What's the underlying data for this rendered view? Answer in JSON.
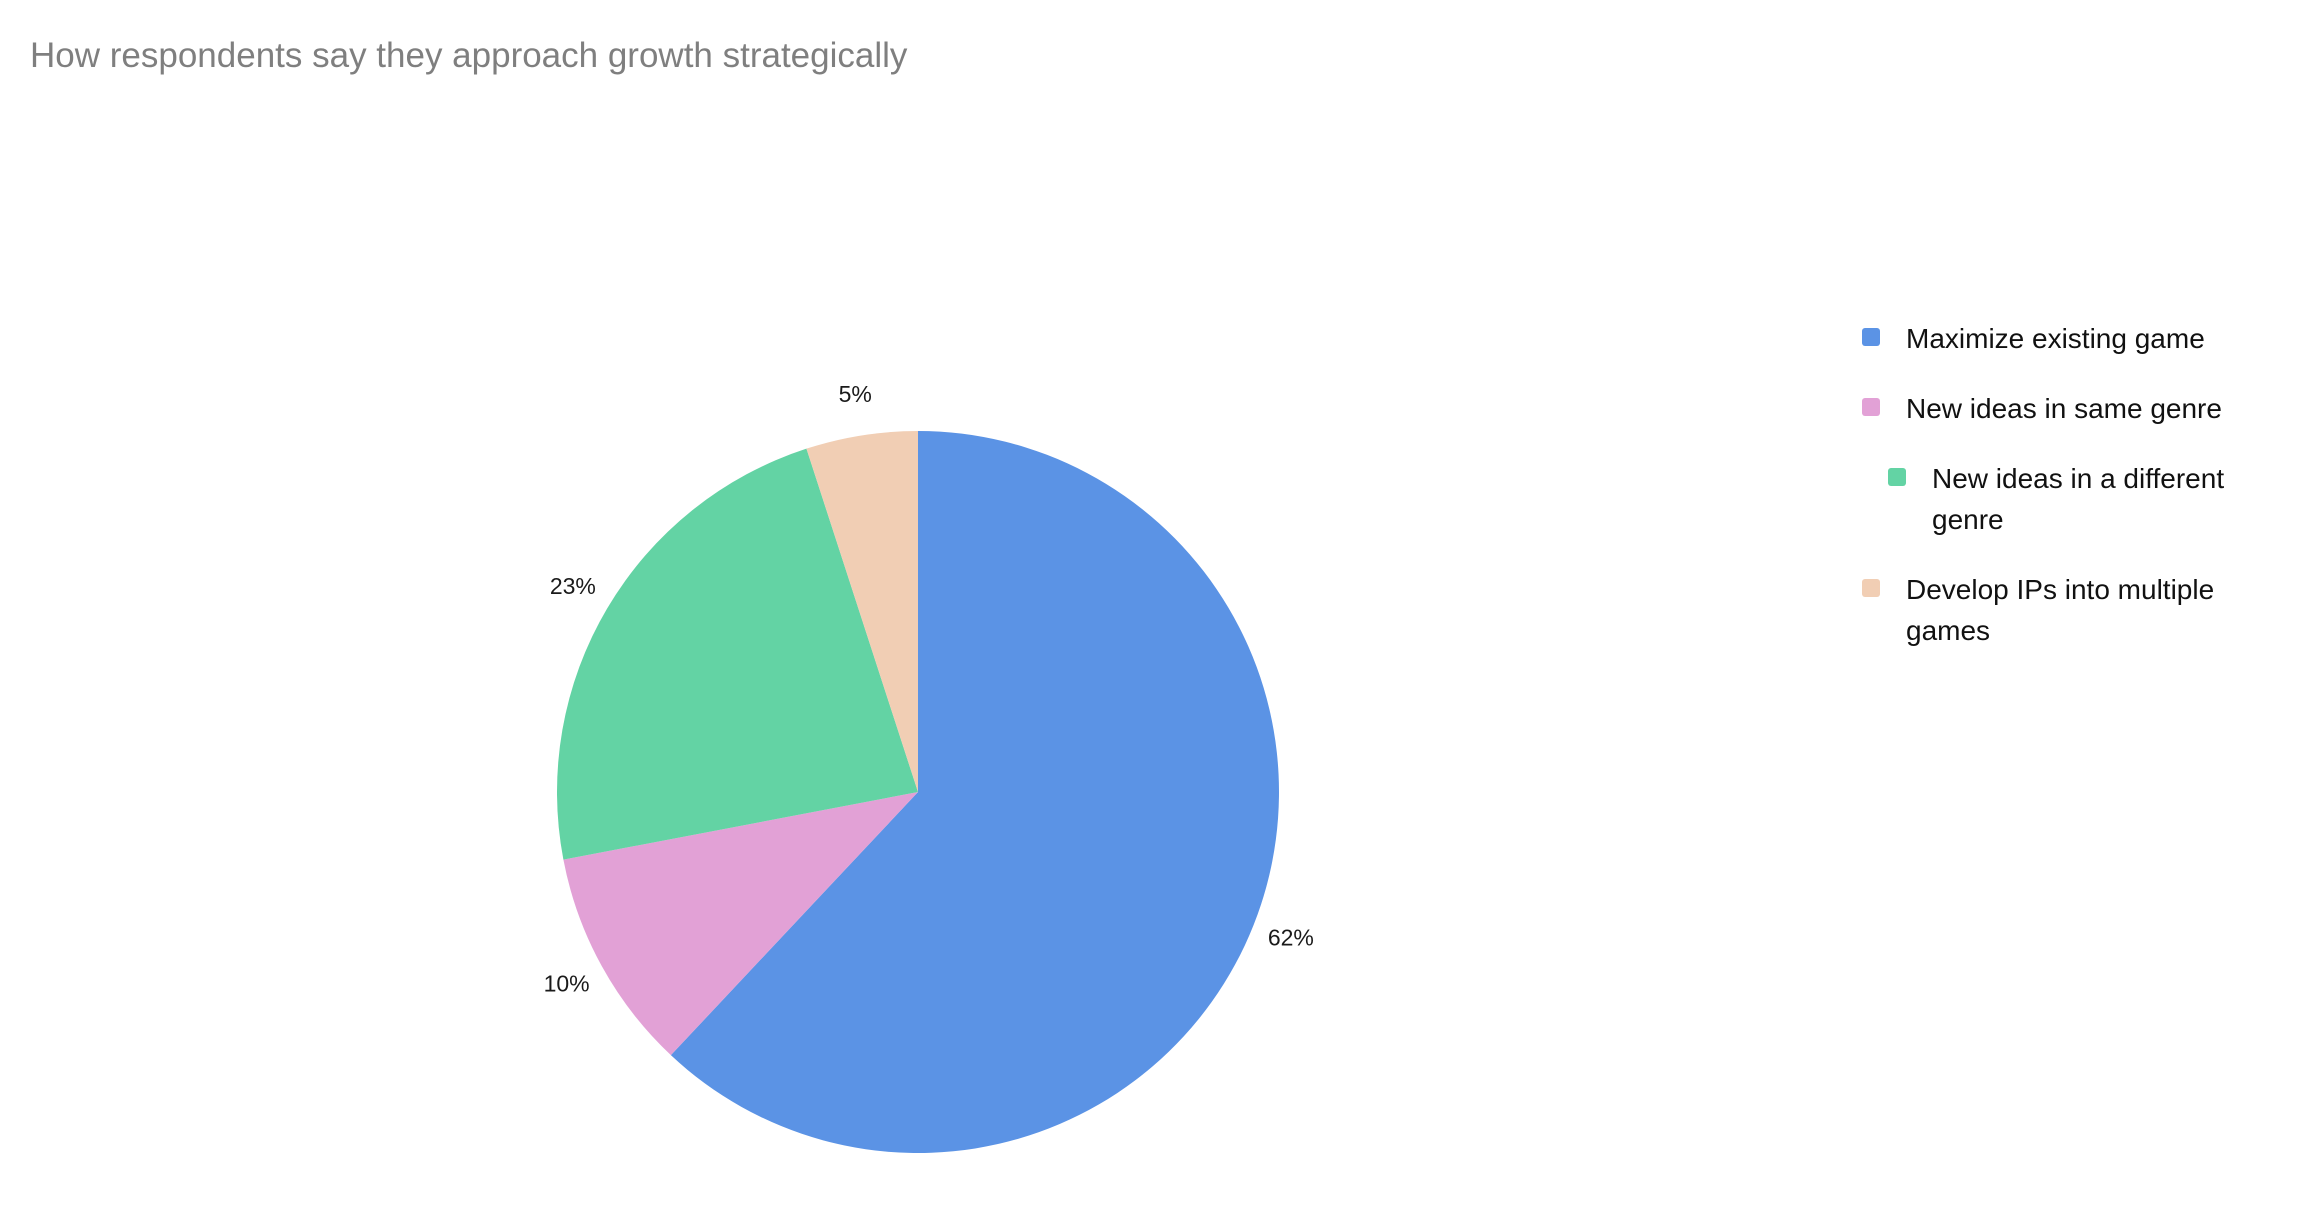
{
  "chart_data": {
    "type": "pie",
    "title": "How respondents say they approach growth strategically",
    "slices": [
      {
        "label": "Maximize existing game",
        "value": 62,
        "display": "62%",
        "color": "#5b93e5"
      },
      {
        "label": "New ideas in same genre",
        "value": 10,
        "display": "10%",
        "color": "#e2a1d6"
      },
      {
        "label": "New ideas in a different genre",
        "value": 23,
        "display": "23%",
        "color": "#63d3a4"
      },
      {
        "label": "Develop IPs into multiple games",
        "value": 5,
        "display": "5%",
        "color": "#f1ceb4"
      }
    ],
    "legend_position": "right",
    "start_angle": "top, clockwise"
  }
}
